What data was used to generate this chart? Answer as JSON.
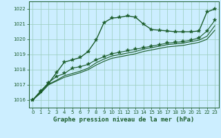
{
  "title": "Graphe pression niveau de la mer (hPa)",
  "bg_color": "#cceeff",
  "grid_color": "#99ccbb",
  "line_color": "#1a5c2a",
  "x_hours": [
    0,
    1,
    2,
    3,
    4,
    5,
    6,
    7,
    8,
    9,
    10,
    11,
    12,
    13,
    14,
    15,
    16,
    17,
    18,
    19,
    20,
    21,
    22,
    23
  ],
  "series1": [
    1016.0,
    1016.6,
    1017.1,
    1017.8,
    1018.5,
    1018.65,
    1018.8,
    1019.2,
    1019.95,
    1021.1,
    1021.4,
    1021.45,
    1021.55,
    1021.45,
    1021.0,
    1020.65,
    1020.6,
    1020.55,
    1020.5,
    1020.5,
    1020.5,
    1020.55,
    1021.8,
    1022.0
  ],
  "series2": [
    1016.0,
    1016.55,
    1017.15,
    1017.55,
    1017.75,
    1018.1,
    1018.2,
    1018.35,
    1018.65,
    1018.85,
    1019.05,
    1019.15,
    1019.25,
    1019.35,
    1019.45,
    1019.55,
    1019.65,
    1019.75,
    1019.8,
    1019.85,
    1019.95,
    1020.1,
    1020.55,
    1021.25
  ],
  "series3": [
    1016.0,
    1016.5,
    1017.05,
    1017.3,
    1017.6,
    1017.75,
    1017.9,
    1018.1,
    1018.45,
    1018.7,
    1018.9,
    1019.0,
    1019.1,
    1019.2,
    1019.35,
    1019.45,
    1019.55,
    1019.65,
    1019.7,
    1019.75,
    1019.85,
    1019.95,
    1020.2,
    1020.9
  ],
  "series4": [
    1016.0,
    1016.45,
    1017.0,
    1017.25,
    1017.5,
    1017.65,
    1017.8,
    1018.0,
    1018.3,
    1018.55,
    1018.75,
    1018.85,
    1018.95,
    1019.05,
    1019.2,
    1019.3,
    1019.4,
    1019.5,
    1019.55,
    1019.6,
    1019.7,
    1019.8,
    1020.0,
    1020.6
  ],
  "ylim": [
    1015.5,
    1022.5
  ],
  "yticks": [
    1016,
    1017,
    1018,
    1019,
    1020,
    1021,
    1022
  ],
  "xticks": [
    0,
    1,
    2,
    3,
    4,
    5,
    6,
    7,
    8,
    9,
    10,
    11,
    12,
    13,
    14,
    15,
    16,
    17,
    18,
    19,
    20,
    21,
    22,
    23
  ],
  "markersize": 3,
  "linewidth1": 1.0,
  "linewidth2": 0.8,
  "title_fontsize": 6.5,
  "tick_fontsize": 5.0
}
